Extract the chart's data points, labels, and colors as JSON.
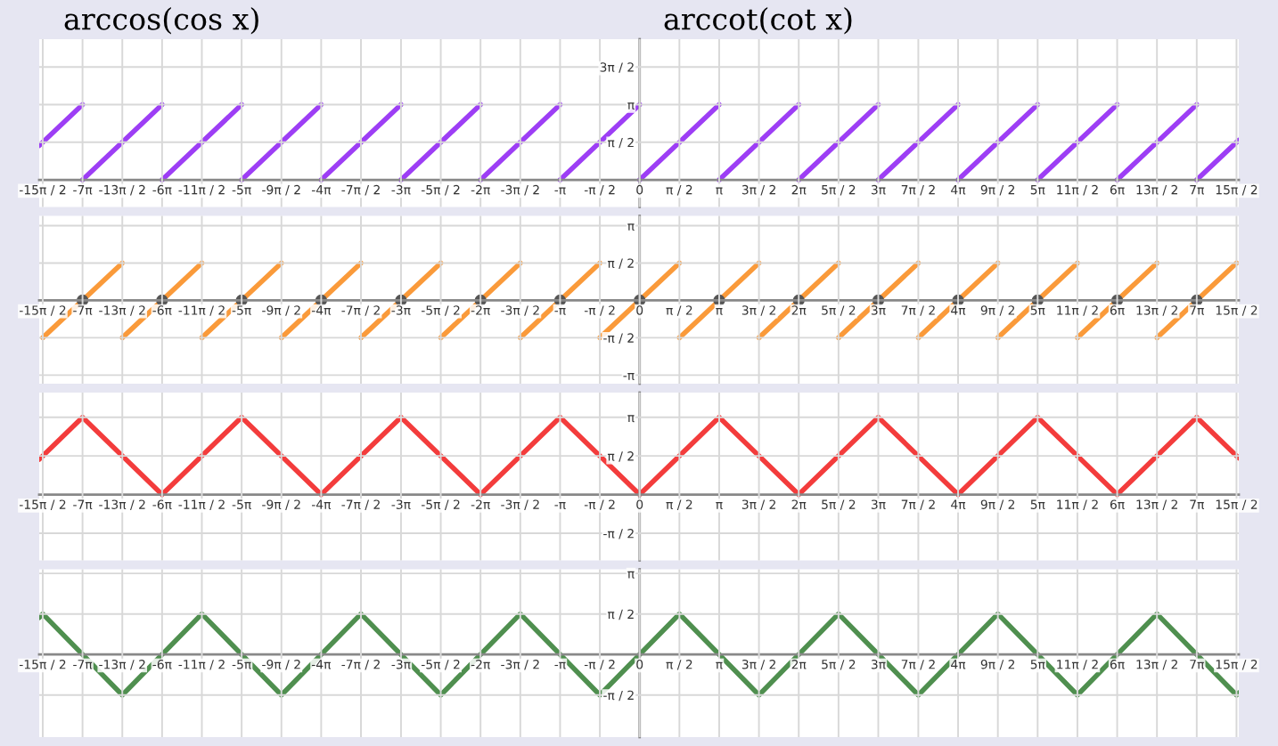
{
  "chart_data": [
    {
      "type": "line",
      "annotations": [
        "arccos(cos x)",
        "arccot(cot x)"
      ],
      "xlim": [
        -23.7,
        23.65
      ],
      "ylim": [
        -1.13,
        5.87
      ],
      "grid": true,
      "xticks": [
        {
          "value": -23.56,
          "label": "-15π / 2"
        },
        {
          "value": -21.99,
          "label": "-7π"
        },
        {
          "value": -20.42,
          "label": "-13π / 2"
        },
        {
          "value": -18.85,
          "label": "-6π"
        },
        {
          "value": -17.28,
          "label": "-11π / 2"
        },
        {
          "value": -15.71,
          "label": "-5π"
        },
        {
          "value": -14.14,
          "label": "-9π / 2"
        },
        {
          "value": -12.57,
          "label": "-4π"
        },
        {
          "value": -11.0,
          "label": "-7π / 2"
        },
        {
          "value": -9.42,
          "label": "-3π"
        },
        {
          "value": -7.85,
          "label": "-5π / 2"
        },
        {
          "value": -6.28,
          "label": "-2π"
        },
        {
          "value": -4.71,
          "label": "-3π / 2"
        },
        {
          "value": -3.14,
          "label": "-π"
        },
        {
          "value": -1.57,
          "label": "-π / 2"
        },
        0,
        {
          "value": 1.57,
          "label": "π / 2"
        },
        {
          "value": 3.14,
          "label": "π"
        },
        {
          "value": 4.71,
          "label": "3π / 2"
        },
        {
          "value": 6.28,
          "label": "2π"
        },
        {
          "value": 7.85,
          "label": "5π / 2"
        },
        {
          "value": 9.42,
          "label": "3π"
        },
        {
          "value": 11.0,
          "label": "7π / 2"
        },
        {
          "value": 12.57,
          "label": "4π"
        },
        {
          "value": 14.14,
          "label": "9π / 2"
        },
        {
          "value": 15.71,
          "label": "5π"
        },
        {
          "value": 17.28,
          "label": "11π / 2"
        },
        {
          "value": 18.85,
          "label": "6π"
        },
        {
          "value": 20.42,
          "label": "13π / 2"
        },
        {
          "value": 21.99,
          "label": "7π"
        },
        {
          "value": 23.56,
          "label": "15π / 2"
        }
      ],
      "yticks": [
        {
          "value": 1.57,
          "label": "π / 2"
        },
        {
          "value": 3.14,
          "label": "π"
        },
        {
          "value": 4.71,
          "label": "3π / 2"
        }
      ],
      "series": [
        {
          "color": "#9d3ef5",
          "x": [
            -23.7,
            -21.99
          ],
          "values": [
            1.43,
            3.14
          ]
        },
        {
          "color": "#9d3ef5",
          "x": [
            -21.99,
            -18.85
          ],
          "values": [
            0,
            3.14
          ]
        },
        {
          "color": "#9d3ef5",
          "x": [
            -18.85,
            -15.71
          ],
          "values": [
            0,
            3.14
          ]
        },
        {
          "color": "#9d3ef5",
          "x": [
            -15.71,
            -12.57
          ],
          "values": [
            0,
            3.14
          ]
        },
        {
          "color": "#9d3ef5",
          "x": [
            -12.57,
            -9.42
          ],
          "values": [
            0,
            3.14
          ]
        },
        {
          "color": "#9d3ef5",
          "x": [
            -9.42,
            -6.28
          ],
          "values": [
            0,
            3.14
          ]
        },
        {
          "color": "#9d3ef5",
          "x": [
            -6.28,
            -3.14
          ],
          "values": [
            0,
            3.14
          ]
        },
        {
          "color": "#9d3ef5",
          "x": [
            -3.14,
            0
          ],
          "values": [
            0,
            3.14
          ]
        },
        {
          "color": "#9d3ef5",
          "x": [
            0,
            3.14
          ],
          "values": [
            0,
            3.14
          ]
        },
        {
          "color": "#9d3ef5",
          "x": [
            3.14,
            6.28
          ],
          "values": [
            0,
            3.14
          ]
        },
        {
          "color": "#9d3ef5",
          "x": [
            6.28,
            9.42
          ],
          "values": [
            0,
            3.14
          ]
        },
        {
          "color": "#9d3ef5",
          "x": [
            9.42,
            12.57
          ],
          "values": [
            0,
            3.14
          ]
        },
        {
          "color": "#9d3ef5",
          "x": [
            12.57,
            15.71
          ],
          "values": [
            0,
            3.14
          ]
        },
        {
          "color": "#9d3ef5",
          "x": [
            15.71,
            18.85
          ],
          "values": [
            0,
            3.14
          ]
        },
        {
          "color": "#9d3ef5",
          "x": [
            18.85,
            21.99
          ],
          "values": [
            0,
            3.14
          ]
        },
        {
          "color": "#9d3ef5",
          "x": [
            21.99,
            23.65
          ],
          "values": [
            0,
            1.66
          ]
        }
      ]
    },
    {
      "type": "line",
      "xlim": [
        -23.7,
        23.65
      ],
      "ylim": [
        -3.5,
        3.55
      ],
      "grid": true,
      "xticks": [
        {
          "value": -23.56,
          "label": "-15π / 2"
        },
        {
          "value": -21.99,
          "label": "-7π"
        },
        {
          "value": -20.42,
          "label": "-13π / 2"
        },
        {
          "value": -18.85,
          "label": "-6π"
        },
        {
          "value": -17.28,
          "label": "-11π / 2"
        },
        {
          "value": -15.71,
          "label": "-5π"
        },
        {
          "value": -14.14,
          "label": "-9π / 2"
        },
        {
          "value": -12.57,
          "label": "-4π"
        },
        {
          "value": -11.0,
          "label": "-7π / 2"
        },
        {
          "value": -9.42,
          "label": "-3π"
        },
        {
          "value": -7.85,
          "label": "-5π / 2"
        },
        {
          "value": -6.28,
          "label": "-2π"
        },
        {
          "value": -4.71,
          "label": "-3π / 2"
        },
        {
          "value": -3.14,
          "label": "-π"
        },
        {
          "value": -1.57,
          "label": "-π / 2"
        },
        0,
        {
          "value": 1.57,
          "label": "π / 2"
        },
        {
          "value": 3.14,
          "label": "π"
        },
        {
          "value": 4.71,
          "label": "3π / 2"
        },
        {
          "value": 6.28,
          "label": "2π"
        },
        {
          "value": 7.85,
          "label": "5π / 2"
        },
        {
          "value": 9.42,
          "label": "3π"
        },
        {
          "value": 11.0,
          "label": "7π / 2"
        },
        {
          "value": 12.57,
          "label": "4π"
        },
        {
          "value": 14.14,
          "label": "9π / 2"
        },
        {
          "value": 15.71,
          "label": "5π"
        },
        {
          "value": 17.28,
          "label": "11π / 2"
        },
        {
          "value": 18.85,
          "label": "6π"
        },
        {
          "value": 20.42,
          "label": "13π / 2"
        },
        {
          "value": 21.99,
          "label": "7π"
        },
        {
          "value": 23.56,
          "label": "15π / 2"
        }
      ],
      "yticks": [
        {
          "value": -3.14,
          "label": "-π"
        },
        {
          "value": -1.57,
          "label": "-π / 2"
        },
        {
          "value": 1.57,
          "label": "π / 2"
        },
        {
          "value": 3.14,
          "label": "π"
        }
      ],
      "series": [
        {
          "color": "#fa9a3a",
          "x": [
            -23.56,
            -20.42
          ],
          "values": [
            -1.57,
            1.57
          ]
        },
        {
          "color": "#fa9a3a",
          "x": [
            -20.42,
            -17.28
          ],
          "values": [
            -1.57,
            1.57
          ]
        },
        {
          "color": "#fa9a3a",
          "x": [
            -17.28,
            -14.14
          ],
          "values": [
            -1.57,
            1.57
          ]
        },
        {
          "color": "#fa9a3a",
          "x": [
            -14.14,
            -11.0
          ],
          "values": [
            -1.57,
            1.57
          ]
        },
        {
          "color": "#fa9a3a",
          "x": [
            -11.0,
            -7.85
          ],
          "values": [
            -1.57,
            1.57
          ]
        },
        {
          "color": "#fa9a3a",
          "x": [
            -7.85,
            -4.71
          ],
          "values": [
            -1.57,
            1.57
          ]
        },
        {
          "color": "#fa9a3a",
          "x": [
            -4.71,
            -1.57
          ],
          "values": [
            -1.57,
            1.57
          ]
        },
        {
          "color": "#fa9a3a",
          "x": [
            -1.57,
            1.57
          ],
          "values": [
            -1.57,
            1.57
          ]
        },
        {
          "color": "#fa9a3a",
          "x": [
            1.57,
            4.71
          ],
          "values": [
            -1.57,
            1.57
          ]
        },
        {
          "color": "#fa9a3a",
          "x": [
            4.71,
            7.85
          ],
          "values": [
            -1.57,
            1.57
          ]
        },
        {
          "color": "#fa9a3a",
          "x": [
            7.85,
            11.0
          ],
          "values": [
            -1.57,
            1.57
          ]
        },
        {
          "color": "#fa9a3a",
          "x": [
            11.0,
            14.14
          ],
          "values": [
            -1.57,
            1.57
          ]
        },
        {
          "color": "#fa9a3a",
          "x": [
            14.14,
            17.28
          ],
          "values": [
            -1.57,
            1.57
          ]
        },
        {
          "color": "#fa9a3a",
          "x": [
            17.28,
            20.42
          ],
          "values": [
            -1.57,
            1.57
          ]
        },
        {
          "color": "#fa9a3a",
          "x": [
            20.42,
            23.56
          ],
          "values": [
            -1.57,
            1.57
          ]
        },
        {
          "type": "scatter",
          "color": "#555555",
          "x": [
            -21.99,
            -18.85,
            -15.71,
            -12.57,
            -9.42,
            -6.28,
            -3.14,
            0,
            3.14,
            6.28,
            9.42,
            12.57,
            15.71,
            18.85,
            21.99
          ],
          "values": [
            0,
            0,
            0,
            0,
            0,
            0,
            0,
            0,
            0,
            0,
            0,
            0,
            0,
            0,
            0
          ]
        }
      ]
    },
    {
      "type": "line",
      "xlim": [
        -23.7,
        23.65
      ],
      "ylim": [
        -2.67,
        4.14
      ],
      "grid": true,
      "xticks": [
        {
          "value": -23.56,
          "label": "-15π / 2"
        },
        {
          "value": -21.99,
          "label": "-7π"
        },
        {
          "value": -20.42,
          "label": "-13π / 2"
        },
        {
          "value": -18.85,
          "label": "-6π"
        },
        {
          "value": -17.28,
          "label": "-11π / 2"
        },
        {
          "value": -15.71,
          "label": "-5π"
        },
        {
          "value": -14.14,
          "label": "-9π / 2"
        },
        {
          "value": -12.57,
          "label": "-4π"
        },
        {
          "value": -11.0,
          "label": "-7π / 2"
        },
        {
          "value": -9.42,
          "label": "-3π"
        },
        {
          "value": -7.85,
          "label": "-5π / 2"
        },
        {
          "value": -6.28,
          "label": "-2π"
        },
        {
          "value": -4.71,
          "label": "-3π / 2"
        },
        {
          "value": -3.14,
          "label": "-π"
        },
        {
          "value": -1.57,
          "label": "-π / 2"
        },
        0,
        {
          "value": 1.57,
          "label": "π / 2"
        },
        {
          "value": 3.14,
          "label": "π"
        },
        {
          "value": 4.71,
          "label": "3π / 2"
        },
        {
          "value": 6.28,
          "label": "2π"
        },
        {
          "value": 7.85,
          "label": "5π / 2"
        },
        {
          "value": 9.42,
          "label": "3π"
        },
        {
          "value": 11.0,
          "label": "7π / 2"
        },
        {
          "value": 12.57,
          "label": "4π"
        },
        {
          "value": 14.14,
          "label": "9π / 2"
        },
        {
          "value": 15.71,
          "label": "5π"
        },
        {
          "value": 17.28,
          "label": "11π / 2"
        },
        {
          "value": 18.85,
          "label": "6π"
        },
        {
          "value": 20.42,
          "label": "13π / 2"
        },
        {
          "value": 21.99,
          "label": "7π"
        },
        {
          "value": 23.56,
          "label": "15π / 2"
        }
      ],
      "yticks": [
        {
          "value": -1.57,
          "label": "-π / 2"
        },
        {
          "value": 1.57,
          "label": "π / 2"
        },
        {
          "value": 3.14,
          "label": "π"
        }
      ],
      "series": [
        {
          "color": "#f33c3c",
          "x": [
            -23.7,
            -21.99,
            -18.85,
            -15.71,
            -12.57,
            -9.42,
            -6.28,
            -3.14,
            0,
            3.14,
            6.28,
            9.42,
            12.57,
            15.71,
            18.85,
            21.99,
            23.65
          ],
          "values": [
            1.43,
            3.14,
            0,
            3.14,
            0,
            3.14,
            0,
            3.14,
            0,
            3.14,
            0,
            3.14,
            0,
            3.14,
            0,
            3.14,
            1.48
          ]
        }
      ]
    },
    {
      "type": "line",
      "xlim": [
        -23.7,
        23.65
      ],
      "ylim": [
        -3.2,
        3.3
      ],
      "grid": true,
      "xticks": [
        {
          "value": -23.56,
          "label": "-15π / 2"
        },
        {
          "value": -21.99,
          "label": "-7π"
        },
        {
          "value": -20.42,
          "label": "-13π / 2"
        },
        {
          "value": -18.85,
          "label": "-6π"
        },
        {
          "value": -17.28,
          "label": "-11π / 2"
        },
        {
          "value": -15.71,
          "label": "-5π"
        },
        {
          "value": -14.14,
          "label": "-9π / 2"
        },
        {
          "value": -12.57,
          "label": "-4π"
        },
        {
          "value": -11.0,
          "label": "-7π / 2"
        },
        {
          "value": -9.42,
          "label": "-3π"
        },
        {
          "value": -7.85,
          "label": "-5π / 2"
        },
        {
          "value": -6.28,
          "label": "-2π"
        },
        {
          "value": -4.71,
          "label": "-3π / 2"
        },
        {
          "value": -3.14,
          "label": "-π"
        },
        {
          "value": -1.57,
          "label": "-π / 2"
        },
        0,
        {
          "value": 1.57,
          "label": "π / 2"
        },
        {
          "value": 3.14,
          "label": "π"
        },
        {
          "value": 4.71,
          "label": "3π / 2"
        },
        {
          "value": 6.28,
          "label": "2π"
        },
        {
          "value": 7.85,
          "label": "5π / 2"
        },
        {
          "value": 9.42,
          "label": "3π"
        },
        {
          "value": 11.0,
          "label": "7π / 2"
        },
        {
          "value": 12.57,
          "label": "4π"
        },
        {
          "value": 14.14,
          "label": "9π / 2"
        },
        {
          "value": 15.71,
          "label": "5π"
        },
        {
          "value": 17.28,
          "label": "11π / 2"
        },
        {
          "value": 18.85,
          "label": "6π"
        },
        {
          "value": 20.42,
          "label": "13π / 2"
        },
        {
          "value": 21.99,
          "label": "7π"
        },
        {
          "value": 23.56,
          "label": "15π / 2"
        }
      ],
      "yticks": [
        {
          "value": -1.57,
          "label": "-π / 2"
        },
        {
          "value": 1.57,
          "label": "π / 2"
        },
        {
          "value": 3.14,
          "label": "π"
        }
      ],
      "series": [
        {
          "color": "#4f8f4f",
          "x": [
            -23.7,
            -23.56,
            -20.42,
            -17.28,
            -14.14,
            -11.0,
            -7.85,
            -4.71,
            -1.57,
            1.57,
            4.71,
            7.85,
            11.0,
            14.14,
            17.28,
            20.42,
            23.56,
            23.65
          ],
          "values": [
            1.43,
            1.57,
            -1.57,
            1.57,
            -1.57,
            1.57,
            -1.57,
            1.57,
            -1.57,
            1.57,
            -1.57,
            1.57,
            -1.57,
            1.57,
            -1.57,
            1.57,
            -1.57,
            -1.48
          ]
        }
      ]
    }
  ]
}
